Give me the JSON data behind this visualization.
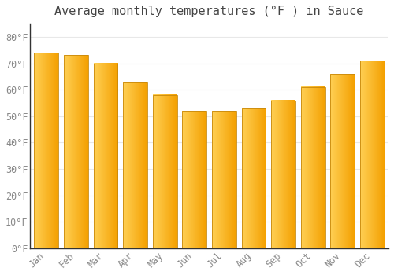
{
  "months": [
    "Jan",
    "Feb",
    "Mar",
    "Apr",
    "May",
    "Jun",
    "Jul",
    "Aug",
    "Sep",
    "Oct",
    "Nov",
    "Dec"
  ],
  "values": [
    74,
    73,
    70,
    63,
    58,
    52,
    52,
    53,
    56,
    61,
    66,
    71
  ],
  "bar_color_left": "#FFD055",
  "bar_color_right": "#F4A000",
  "bar_edge_color": "#C8880A",
  "title": "Average monthly temperatures (°F ) in Sauce",
  "ylim": [
    0,
    85
  ],
  "yticks": [
    0,
    10,
    20,
    30,
    40,
    50,
    60,
    70,
    80
  ],
  "ytick_labels": [
    "0°F",
    "10°F",
    "20°F",
    "30°F",
    "40°F",
    "50°F",
    "60°F",
    "70°F",
    "80°F"
  ],
  "background_color": "#ffffff",
  "grid_color": "#e8e8e8",
  "title_fontsize": 11,
  "tick_fontsize": 8.5
}
